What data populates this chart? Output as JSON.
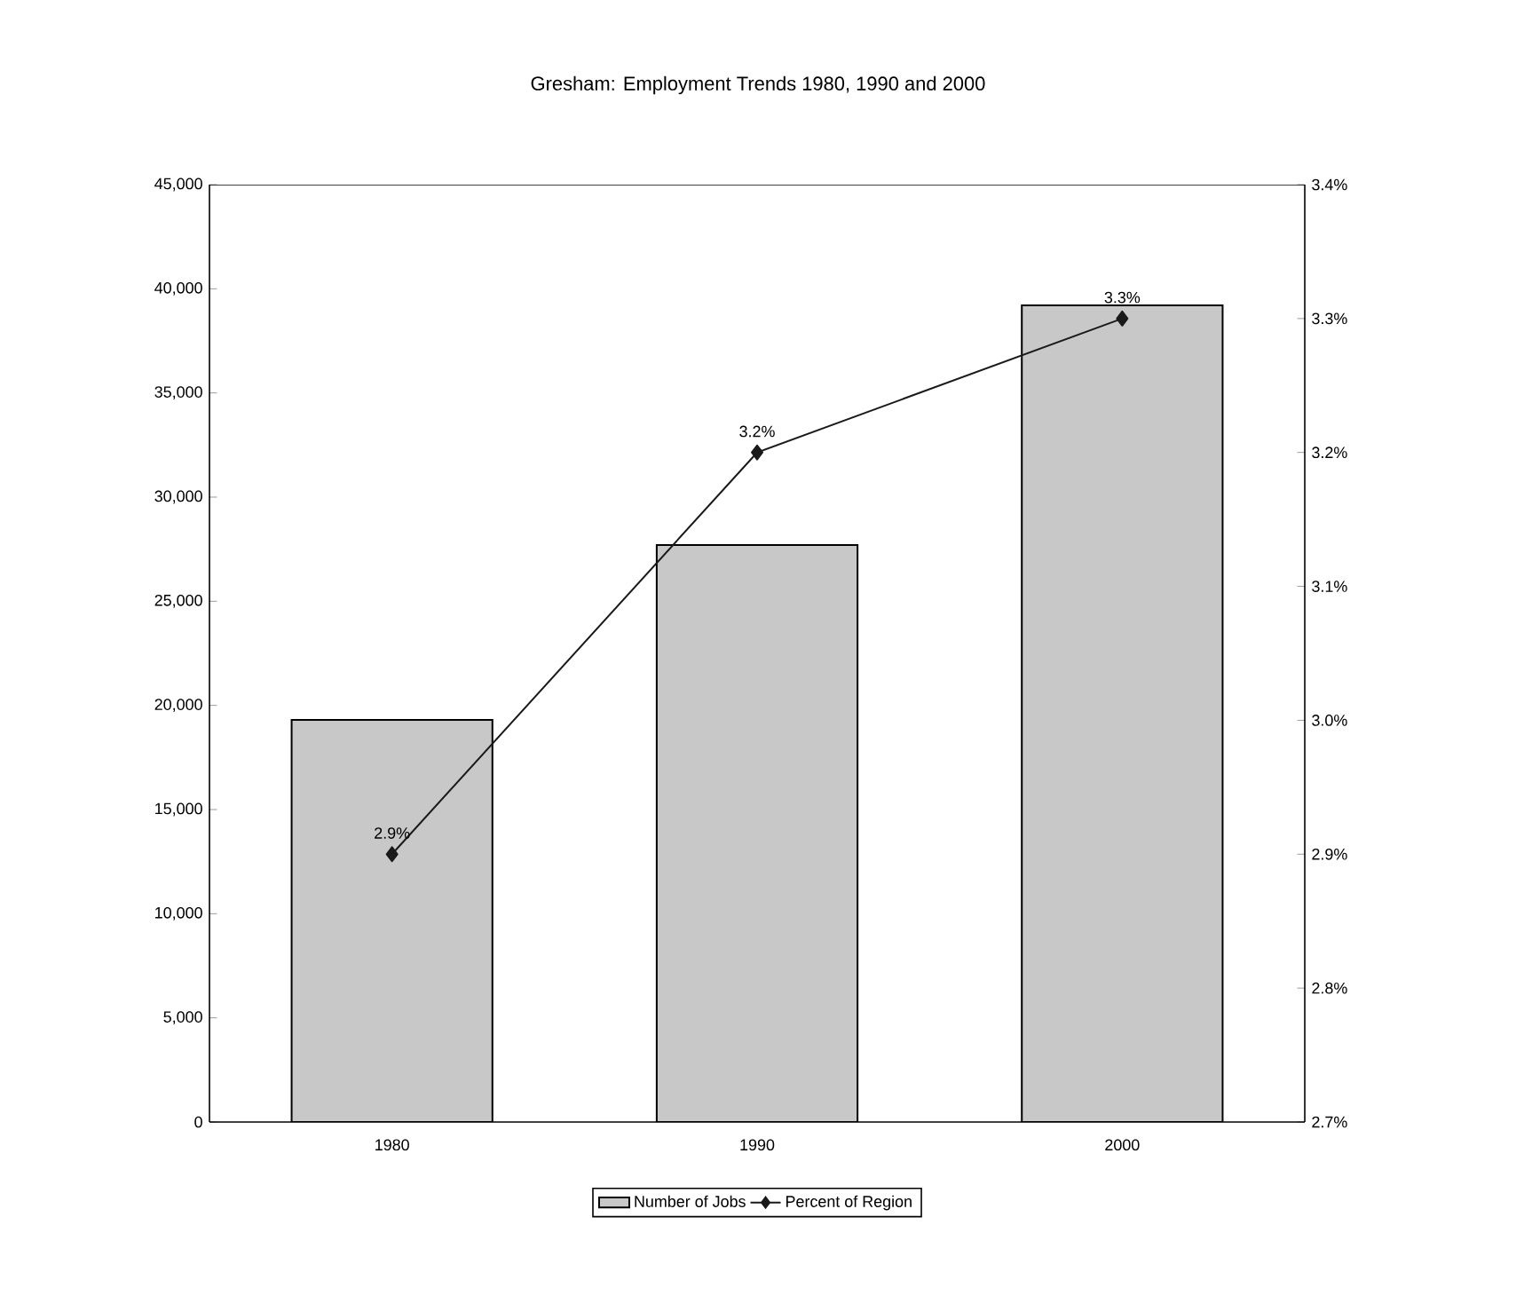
{
  "chart_data": {
    "type": "bar",
    "title": "Gresham: Employment Trends 1980, 1990 and 2000",
    "categories": [
      "1980",
      "1990",
      "2000"
    ],
    "series": [
      {
        "name": "Number of Jobs",
        "color": "#c8c8c8",
        "values": [
          19300,
          27700,
          39200
        ]
      },
      {
        "name": "Percent of Region",
        "type": "line",
        "axis": "y2",
        "color": "#1a1a1a",
        "values": [
          2.9,
          3.2,
          3.3
        ],
        "value_labels": [
          "2.9%",
          "3.2%",
          "3.3%"
        ]
      }
    ],
    "ylim": [
      0,
      45000
    ],
    "yticks": [
      0,
      {
        "value": 5000,
        "label": "5,000"
      },
      {
        "value": 10000,
        "label": "10,000"
      },
      {
        "value": 15000,
        "label": "15,000"
      },
      {
        "value": 20000,
        "label": "20,000"
      },
      {
        "value": 25000,
        "label": "25,000"
      },
      {
        "value": 30000,
        "label": "30,000"
      },
      {
        "value": 35000,
        "label": "35,000"
      },
      {
        "value": 40000,
        "label": "40,000"
      },
      {
        "value": 45000,
        "label": "45,000"
      }
    ],
    "y2lim": [
      2.7,
      3.4
    ],
    "y2ticks": [
      {
        "value": 2.7,
        "label": "2.7%"
      },
      {
        "value": 2.8,
        "label": "2.8%"
      },
      {
        "value": 2.9,
        "label": "2.9%"
      },
      {
        "value": 3.0,
        "label": "3.0%"
      },
      {
        "value": 3.1,
        "label": "3.1%"
      },
      {
        "value": 3.2,
        "label": "3.2%"
      },
      {
        "value": 3.3,
        "label": "3.3%"
      },
      {
        "value": 3.4,
        "label": "3.4%"
      }
    ],
    "marker": "diamond",
    "legend": "bottom"
  }
}
